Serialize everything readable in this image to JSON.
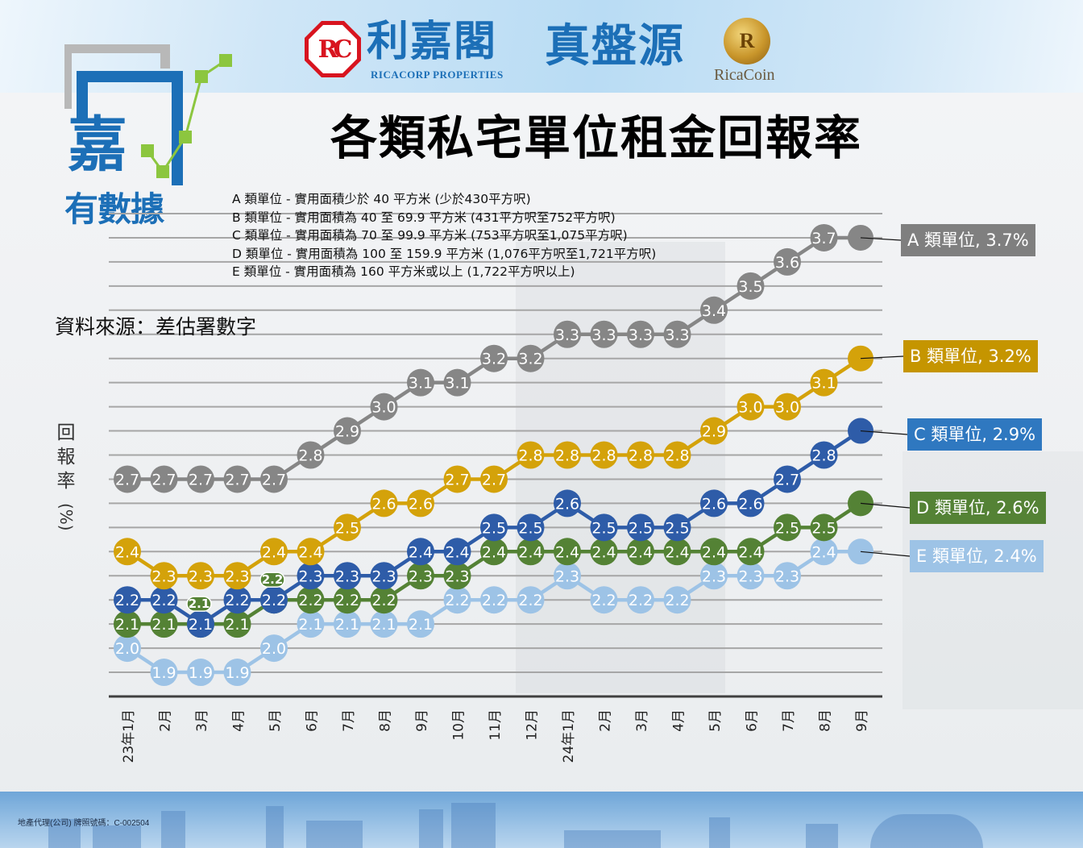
{
  "header": {
    "brand_chinese": "利嘉閣",
    "brand_english": "RICACORP PROPERTIES",
    "brand_mark": "RC",
    "product_name": "真盤源",
    "coin_letter": "R",
    "coin_name": "RicaCoin",
    "logo_text_1": "嘉",
    "logo_text_2": "有數據"
  },
  "title": "各類私宅單位租金回報率",
  "definitions": [
    "A 類單位 - 實用面積少於 40 平方米 (少於430平方呎)",
    "B 類單位 - 實用面積為 40 至 69.9 平方米 (431平方呎至752平方呎)",
    "C 類單位 - 實用面積為 70 至 99.9 平方米 (753平方呎至1,075平方呎)",
    "D 類單位 - 實用面積為 100 至 159.9 平方米 (1,076平方呎至1,721平方呎)",
    "E 類單位 - 實用面積為 160 平方米或以上 (1,722平方呎以上)"
  ],
  "source": "資料來源：差估署數字",
  "footer": "地產代理(公司) 牌照號碼：C-002504",
  "chart_data": {
    "type": "line",
    "title": "各類私宅單位租金回報率",
    "xlabel": "",
    "ylabel_chars": [
      "回",
      "報",
      "率"
    ],
    "ylabel_unit": "(%)",
    "ylabel": "回報率(%)",
    "ylim": [
      1.8,
      3.8
    ],
    "grid": true,
    "categories": [
      "23年1月",
      "2月",
      "3月",
      "4月",
      "5月",
      "6月",
      "7月",
      "8月",
      "9月",
      "10月",
      "11月",
      "12月",
      "24年1月",
      "2月",
      "3月",
      "4月",
      "5月",
      "6月",
      "7月",
      "8月",
      "9月"
    ],
    "series": [
      {
        "name": "A 類單位",
        "color": "#868686",
        "callout": "A 類單位, 3.7%",
        "callout_bg": "#7f7f7f",
        "values": [
          2.7,
          2.7,
          2.7,
          2.7,
          2.7,
          2.8,
          2.9,
          3.0,
          3.1,
          3.1,
          3.2,
          3.2,
          3.3,
          3.3,
          3.3,
          3.3,
          3.4,
          3.5,
          3.6,
          3.7,
          3.7
        ]
      },
      {
        "name": "B 類單位",
        "color": "#d4a20a",
        "callout": "B 類單位, 3.2%",
        "callout_bg": "#c59500",
        "values": [
          2.4,
          2.3,
          2.3,
          2.3,
          2.4,
          2.4,
          2.5,
          2.6,
          2.6,
          2.7,
          2.7,
          2.8,
          2.8,
          2.8,
          2.8,
          2.8,
          2.9,
          3.0,
          3.0,
          3.1,
          3.2
        ]
      },
      {
        "name": "C 類單位",
        "color": "#2e5ca8",
        "callout": "C 類單位, 2.9%",
        "callout_bg": "#2f78c0",
        "values": [
          2.2,
          2.2,
          2.1,
          2.2,
          2.2,
          2.3,
          2.3,
          2.3,
          2.4,
          2.4,
          2.5,
          2.5,
          2.6,
          2.5,
          2.5,
          2.5,
          2.6,
          2.6,
          2.7,
          2.8,
          2.9
        ]
      },
      {
        "name": "D 類單位",
        "color": "#548235",
        "callout": "D 類單位, 2.6%",
        "callout_bg": "#548235",
        "values": [
          2.1,
          2.1,
          2.1,
          2.1,
          2.2,
          2.2,
          2.2,
          2.2,
          2.3,
          2.3,
          2.4,
          2.4,
          2.4,
          2.4,
          2.4,
          2.4,
          2.4,
          2.4,
          2.5,
          2.5,
          2.6
        ]
      },
      {
        "name": "E 類單位",
        "color": "#9dc3e6",
        "callout": "E 類單位, 2.4%",
        "callout_bg": "#9dc3e6",
        "values": [
          2.0,
          1.9,
          1.9,
          1.9,
          2.0,
          2.1,
          2.1,
          2.1,
          2.1,
          2.2,
          2.2,
          2.2,
          2.3,
          2.2,
          2.2,
          2.2,
          2.3,
          2.3,
          2.3,
          2.4,
          2.4
        ]
      }
    ],
    "last_point_labeled": false,
    "legend": "callouts-right"
  }
}
